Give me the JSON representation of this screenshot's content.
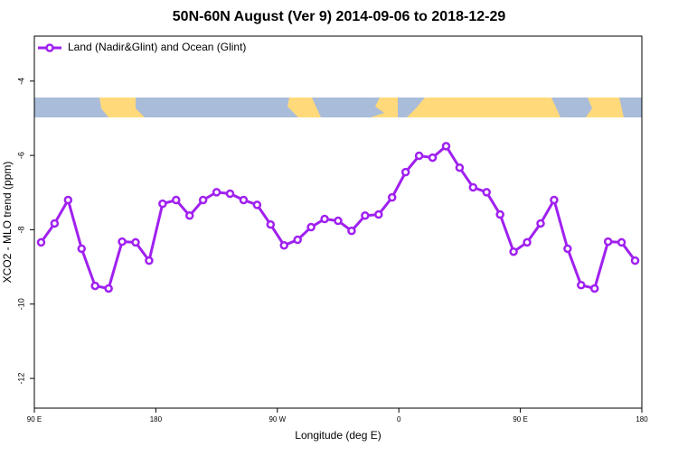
{
  "chart_data": {
    "type": "line",
    "title": "50N-60N August (Ver 9)   2014-09-06 to 2018-12-29",
    "x_label": "Longitude (deg E)",
    "y_label": "XCO2 - MLO trend (ppm)",
    "x": [
      95,
      105,
      115,
      125,
      135,
      145,
      155,
      165,
      175,
      185,
      195,
      205,
      215,
      225,
      235,
      245,
      255,
      265,
      275,
      285,
      295,
      305,
      315,
      325,
      335,
      345,
      355,
      365,
      375,
      385,
      395,
      405,
      415,
      425,
      435,
      445,
      455,
      465,
      475,
      485,
      495,
      505,
      515,
      525,
      535
    ],
    "series": [
      {
        "name": "Land (Nadir&Glint) and Ocean (Glint)",
        "color": "#a020f0",
        "values": [
          -8.34,
          -7.83,
          -7.2,
          -8.51,
          -9.51,
          -9.58,
          -8.32,
          -8.34,
          -8.83,
          -7.3,
          -7.2,
          -7.62,
          -7.2,
          -6.99,
          -7.03,
          -7.2,
          -7.33,
          -7.86,
          -8.42,
          -8.27,
          -7.93,
          -7.71,
          -7.76,
          -8.03,
          -7.62,
          -7.59,
          -7.13,
          -6.45,
          -6.01,
          -6.06,
          -5.75,
          -6.33,
          -6.86,
          -6.99,
          -7.59,
          -8.59,
          -8.34,
          -7.83,
          -7.2,
          -8.51,
          -9.49,
          -9.58,
          -8.32,
          -8.34,
          -8.83
        ]
      }
    ],
    "xlim": [
      90,
      540
    ],
    "xticks": [
      {
        "value": 90,
        "label": "90 E"
      },
      {
        "value": 180,
        "label": "180"
      },
      {
        "value": 270,
        "label": "90 W"
      },
      {
        "value": 360,
        "label": "0"
      },
      {
        "value": 450,
        "label": "90 E"
      },
      {
        "value": 540,
        "label": "180"
      }
    ],
    "ylim": [
      -12.8,
      -2.79
    ],
    "yticks": [
      -4,
      -6,
      -8,
      -10,
      -12
    ],
    "legend": "top-left"
  }
}
